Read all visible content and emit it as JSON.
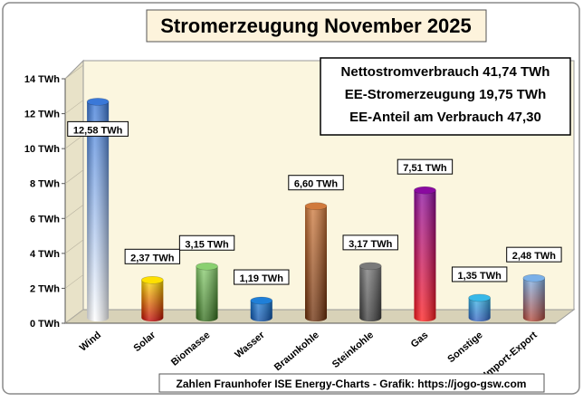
{
  "chart_data": {
    "type": "bar",
    "title": "Stromerzeugung November 2025",
    "categories": [
      "Wind",
      "Solar",
      "Biomasse",
      "Wasser",
      "Braunkohle",
      "Steinkohle",
      "Gas",
      "Sonstige",
      "Import-Export"
    ],
    "values": [
      12.58,
      2.37,
      3.15,
      1.19,
      6.6,
      3.17,
      7.51,
      1.35,
      2.48
    ],
    "value_labels": [
      "12,58 TWh",
      "2,37 TWh",
      "3,15 TWh",
      "1,19 TWh",
      "6,60 TWh",
      "3,17 TWh",
      "7,51 TWh",
      "1,35 TWh",
      "2,48 TWh"
    ],
    "yticks": [
      0,
      2,
      4,
      6,
      8,
      10,
      12,
      14
    ],
    "ytick_labels": [
      "0 TWh",
      "2 TWh",
      "4 TWh",
      "6 TWh",
      "8 TWh",
      "10 TWh",
      "12 TWh",
      "14 TWh"
    ],
    "ylim": [
      0,
      14
    ],
    "grid": false,
    "xlabel": "",
    "ylabel": "",
    "bar_colors": {
      "Wind": [
        "#3a78d8",
        "#ffffff"
      ],
      "Solar": [
        "#ffe000",
        "#c00000"
      ],
      "Biomasse": [
        "#8ad070",
        "#2f6a18"
      ],
      "Wasser": [
        "#1f7fd8",
        "#0b4fa8"
      ],
      "Braunkohle": [
        "#d07a3c",
        "#6a2c08"
      ],
      "Steinkohle": [
        "#7a7a7a",
        "#3a3a3a"
      ],
      "Gas": [
        "#8a0aa0",
        "#ff1a1a"
      ],
      "Sonstige": [
        "#38b8e8",
        "#3060c0"
      ],
      "Import-Export": [
        "#7ab0e8",
        "#b04030"
      ]
    },
    "info_box": [
      "Nettostromverbrauch 41,74 TWh",
      "EE-Stromerzeugung 19,75 TWh",
      "EE-Anteil am Verbrauch 47,30"
    ],
    "source": "Zahlen Fraunhofer ISE  Energy-Charts - Grafik: https://jogo-gsw.com"
  }
}
